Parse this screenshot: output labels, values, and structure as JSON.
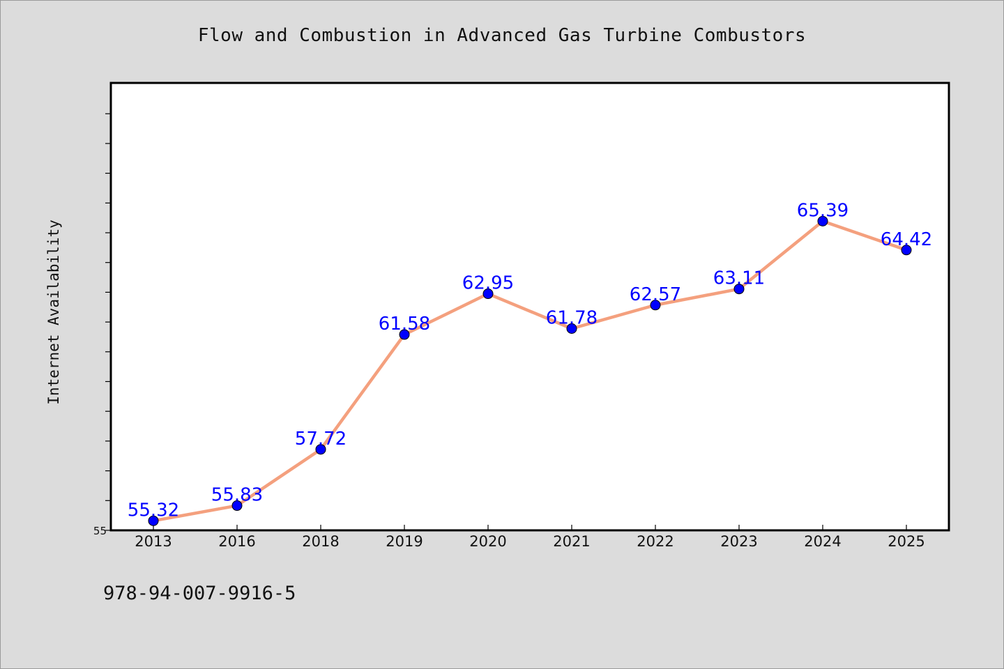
{
  "chart_data": {
    "type": "line",
    "title": "Flow and Combustion in Advanced Gas Turbine Combustors",
    "xlabel": "",
    "ylabel": "Internet Availability",
    "categories": [
      "2013",
      "2016",
      "2018",
      "2019",
      "2020",
      "2021",
      "2022",
      "2023",
      "2024",
      "2025"
    ],
    "series": [
      {
        "values": [
          55.32,
          55.83,
          57.72,
          61.58,
          62.95,
          61.78,
          62.57,
          63.11,
          65.39,
          64.42
        ],
        "data_labels": [
          "55.32",
          "55.83",
          "57.72",
          "61.58",
          "62.95",
          "61.78",
          "62.57",
          "63.11",
          "65.39",
          "64.42"
        ]
      }
    ],
    "ylim": [
      55,
      70
    ],
    "yticks": [
      55,
      56,
      57,
      58,
      59,
      60,
      61,
      62,
      63,
      64,
      65,
      66,
      67,
      68,
      69
    ],
    "ytick_labels_shown": [
      "55"
    ],
    "grid": false,
    "legend": "none",
    "colors": {
      "line": "#f4a07e",
      "marker": "#0000ff",
      "marker_edge": "#000000",
      "data_label": "#0000ff",
      "plot_background": "#ffffff",
      "figure_background": "#dcdcdc"
    }
  },
  "footer": {
    "isbn": "978-94-007-9916-5"
  }
}
